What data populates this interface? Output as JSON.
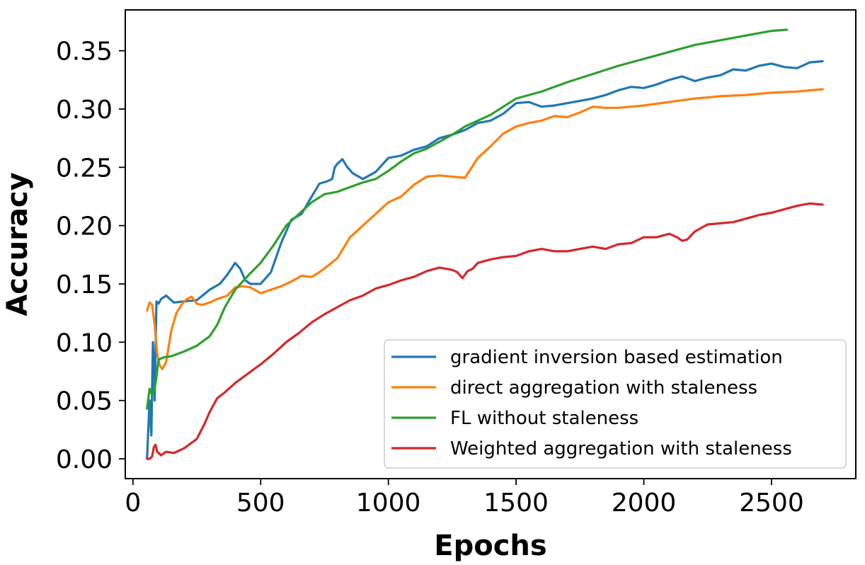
{
  "chart_data": {
    "type": "line",
    "title": "",
    "xlabel": "Epochs",
    "ylabel": "Accuracy",
    "xlim": [
      -30,
      2830
    ],
    "ylim": [
      -0.017,
      0.385
    ],
    "xticks": [
      0,
      500,
      1000,
      1500,
      2000,
      2500
    ],
    "yticks": [
      0.0,
      0.05,
      0.1,
      0.15,
      0.2,
      0.25,
      0.3,
      0.35
    ],
    "xtick_labels": [
      "0",
      "500",
      "1000",
      "1500",
      "2000",
      "2500"
    ],
    "ytick_labels": [
      "0.00",
      "0.05",
      "0.10",
      "0.15",
      "0.20",
      "0.25",
      "0.30",
      "0.35"
    ],
    "grid": false,
    "legend_position": "lower-right",
    "series": [
      {
        "name": "gradient inversion based estimation",
        "color": "#1f77b4",
        "x": [
          55,
          65,
          72,
          78,
          85,
          92,
          100,
          110,
          130,
          160,
          200,
          250,
          300,
          340,
          370,
          400,
          420,
          440,
          460,
          500,
          540,
          580,
          620,
          660,
          700,
          730,
          760,
          780,
          790,
          800,
          820,
          840,
          860,
          900,
          950,
          1000,
          1050,
          1100,
          1150,
          1200,
          1250,
          1300,
          1350,
          1400,
          1450,
          1500,
          1550,
          1600,
          1650,
          1700,
          1750,
          1800,
          1850,
          1900,
          1950,
          2000,
          2050,
          2100,
          2150,
          2200,
          2250,
          2300,
          2350,
          2400,
          2450,
          2500,
          2550,
          2600,
          2650,
          2700
        ],
        "y": [
          0.0,
          0.05,
          0.02,
          0.1,
          0.05,
          0.135,
          0.133,
          0.137,
          0.14,
          0.134,
          0.135,
          0.136,
          0.145,
          0.15,
          0.158,
          0.168,
          0.163,
          0.153,
          0.15,
          0.15,
          0.16,
          0.185,
          0.205,
          0.21,
          0.225,
          0.236,
          0.238,
          0.24,
          0.25,
          0.253,
          0.257,
          0.25,
          0.245,
          0.24,
          0.246,
          0.258,
          0.26,
          0.265,
          0.268,
          0.275,
          0.278,
          0.282,
          0.288,
          0.29,
          0.296,
          0.305,
          0.306,
          0.302,
          0.303,
          0.305,
          0.307,
          0.309,
          0.312,
          0.316,
          0.319,
          0.318,
          0.321,
          0.325,
          0.328,
          0.324,
          0.327,
          0.329,
          0.334,
          0.333,
          0.337,
          0.339,
          0.336,
          0.335,
          0.34,
          0.341
        ]
      },
      {
        "name": "direct aggregation with staleness",
        "color": "#ff7f0e",
        "x": [
          55,
          65,
          75,
          85,
          95,
          105,
          115,
          130,
          150,
          170,
          190,
          210,
          230,
          250,
          270,
          300,
          330,
          370,
          400,
          430,
          460,
          500,
          540,
          580,
          620,
          660,
          700,
          730,
          760,
          800,
          850,
          900,
          950,
          1000,
          1050,
          1100,
          1150,
          1200,
          1250,
          1300,
          1350,
          1400,
          1450,
          1500,
          1550,
          1600,
          1650,
          1700,
          1750,
          1800,
          1850,
          1900,
          1950,
          2000,
          2100,
          2200,
          2300,
          2400,
          2500,
          2600,
          2700
        ],
        "y": [
          0.127,
          0.134,
          0.132,
          0.115,
          0.09,
          0.08,
          0.077,
          0.083,
          0.11,
          0.125,
          0.132,
          0.137,
          0.139,
          0.133,
          0.132,
          0.134,
          0.137,
          0.14,
          0.147,
          0.148,
          0.147,
          0.142,
          0.145,
          0.148,
          0.152,
          0.157,
          0.156,
          0.16,
          0.165,
          0.172,
          0.19,
          0.2,
          0.21,
          0.22,
          0.225,
          0.235,
          0.242,
          0.243,
          0.242,
          0.241,
          0.258,
          0.268,
          0.279,
          0.285,
          0.288,
          0.29,
          0.294,
          0.293,
          0.297,
          0.302,
          0.301,
          0.301,
          0.302,
          0.303,
          0.306,
          0.309,
          0.311,
          0.312,
          0.314,
          0.315,
          0.317
        ]
      },
      {
        "name": "FL without staleness",
        "color": "#2ca02c",
        "x": [
          55,
          65,
          75,
          85,
          92,
          100,
          120,
          150,
          200,
          250,
          300,
          330,
          360,
          400,
          450,
          500,
          550,
          600,
          650,
          700,
          750,
          800,
          850,
          900,
          950,
          1000,
          1050,
          1100,
          1150,
          1200,
          1250,
          1300,
          1350,
          1400,
          1450,
          1500,
          1600,
          1700,
          1800,
          1900,
          2000,
          2100,
          2200,
          2300,
          2400,
          2500,
          2560
        ],
        "y": [
          0.043,
          0.06,
          0.055,
          0.06,
          0.07,
          0.085,
          0.087,
          0.088,
          0.092,
          0.097,
          0.105,
          0.115,
          0.13,
          0.145,
          0.157,
          0.168,
          0.183,
          0.2,
          0.21,
          0.22,
          0.227,
          0.229,
          0.233,
          0.237,
          0.24,
          0.247,
          0.255,
          0.262,
          0.266,
          0.272,
          0.278,
          0.285,
          0.29,
          0.295,
          0.302,
          0.309,
          0.315,
          0.323,
          0.33,
          0.337,
          0.343,
          0.349,
          0.355,
          0.359,
          0.363,
          0.367,
          0.368
        ]
      },
      {
        "name": "Weighted aggregation with staleness",
        "color": "#d62728",
        "x": [
          55,
          65,
          75,
          82,
          88,
          95,
          110,
          130,
          160,
          200,
          250,
          280,
          300,
          330,
          360,
          400,
          450,
          500,
          550,
          600,
          650,
          700,
          750,
          800,
          850,
          900,
          950,
          1000,
          1050,
          1100,
          1150,
          1200,
          1250,
          1270,
          1290,
          1310,
          1330,
          1350,
          1400,
          1450,
          1500,
          1550,
          1600,
          1650,
          1700,
          1750,
          1800,
          1850,
          1900,
          1950,
          2000,
          2050,
          2100,
          2130,
          2150,
          2170,
          2200,
          2250,
          2300,
          2350,
          2400,
          2450,
          2500,
          2550,
          2600,
          2650,
          2700
        ],
        "y": [
          0.0,
          0.0,
          0.002,
          0.01,
          0.012,
          0.006,
          0.003,
          0.006,
          0.005,
          0.009,
          0.017,
          0.03,
          0.04,
          0.052,
          0.057,
          0.065,
          0.073,
          0.081,
          0.09,
          0.1,
          0.108,
          0.117,
          0.124,
          0.13,
          0.136,
          0.14,
          0.146,
          0.149,
          0.153,
          0.156,
          0.161,
          0.164,
          0.162,
          0.16,
          0.155,
          0.161,
          0.163,
          0.168,
          0.171,
          0.173,
          0.174,
          0.178,
          0.18,
          0.178,
          0.178,
          0.18,
          0.182,
          0.18,
          0.184,
          0.185,
          0.19,
          0.19,
          0.193,
          0.19,
          0.187,
          0.188,
          0.195,
          0.201,
          0.202,
          0.203,
          0.206,
          0.209,
          0.211,
          0.214,
          0.217,
          0.219,
          0.218
        ]
      }
    ]
  }
}
